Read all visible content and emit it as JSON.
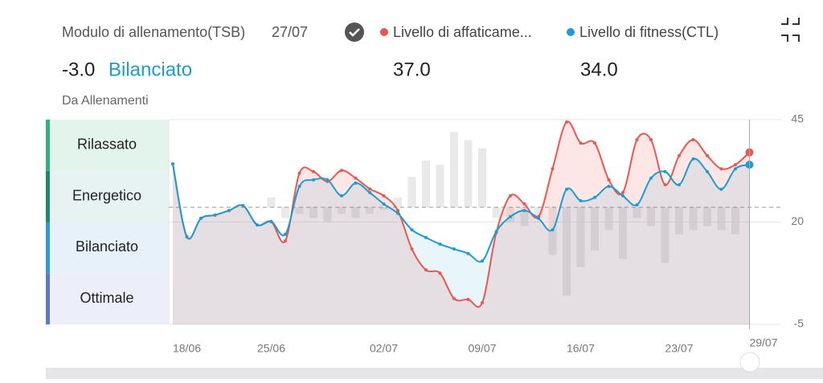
{
  "header": {
    "title": "Modulo di allenamento(TSB)",
    "date": "27/07",
    "legend": [
      "Livello di affaticame...",
      "Livello di fitness(CTL)"
    ],
    "tsb_value": "-3.0",
    "tsb_state": "Bilanciato",
    "atl_value": "37.0",
    "ctl_value": "34.0",
    "source": "Da Allenamenti"
  },
  "zones": [
    "Rilassato",
    "Energetico",
    "Bilanciato",
    "Ottimale"
  ],
  "chart_data": {
    "type": "line",
    "categories": [
      null,
      "18/06",
      null,
      null,
      null,
      null,
      null,
      "25/06",
      null,
      null,
      null,
      null,
      null,
      null,
      null,
      "02/07",
      null,
      null,
      null,
      null,
      null,
      null,
      "09/07",
      null,
      null,
      null,
      null,
      null,
      null,
      "16/07",
      null,
      null,
      null,
      null,
      null,
      null,
      "23/07",
      null,
      null,
      null,
      null,
      null,
      "29/07"
    ],
    "series": [
      {
        "name": "Livello di affaticame...",
        "color": "#e8584f",
        "values": [
          34.2,
          16.4,
          20.9,
          21.7,
          22.8,
          24.0,
          19.3,
          20.1,
          15.4,
          31.9,
          32.3,
          29.9,
          32.6,
          30.7,
          28.1,
          26.4,
          22.8,
          13.4,
          8.3,
          7.5,
          1.3,
          1.1,
          0.3,
          17.4,
          26.4,
          24.4,
          21.3,
          33.0,
          44.4,
          39.3,
          39.3,
          30.3,
          27.2,
          40.1,
          40.1,
          29.1,
          36.2,
          40.1,
          36.2,
          33.0,
          34.0,
          37.0,
          null
        ]
      },
      {
        "name": "Livello di fitness(CTL)",
        "color": "#1f9bd1",
        "values": [
          34.2,
          16.4,
          20.9,
          21.7,
          22.8,
          24.0,
          19.3,
          20.1,
          17.0,
          28.7,
          30.3,
          30.3,
          26.4,
          29.5,
          27.2,
          24.4,
          22.1,
          18.1,
          16.2,
          14.6,
          13.4,
          12.3,
          10.5,
          17.7,
          21.3,
          22.8,
          20.9,
          18.1,
          28.0,
          25.2,
          26.0,
          28.7,
          26.4,
          24.2,
          30.7,
          32.3,
          29.1,
          35.4,
          32.3,
          28.0,
          33.0,
          34.0,
          null
        ]
      }
    ],
    "bars": [
      null,
      null,
      null,
      null,
      null,
      null,
      null,
      26.0,
      21,
      22,
      21,
      20,
      22,
      21,
      22,
      23,
      26,
      31,
      35,
      34,
      42,
      40,
      38,
      21,
      20,
      19,
      21,
      12,
      2,
      9,
      13,
      18,
      11,
      21,
      19,
      10,
      17,
      18,
      19,
      18,
      17,
      null,
      null
    ],
    "reference_line": 23.6,
    "ylim": [
      -5,
      45
    ],
    "yticks": [
      45,
      20,
      -5
    ],
    "grid": true
  }
}
